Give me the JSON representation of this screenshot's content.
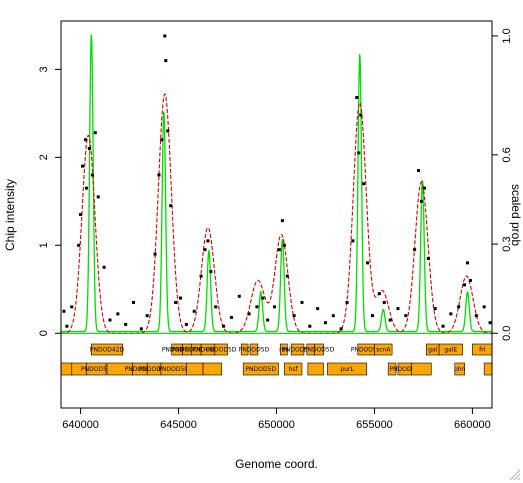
{
  "chart_data": {
    "type": "line",
    "title": "",
    "xlabel": "Genome coord.",
    "ylabel": "Chip intensity",
    "ylabel_right": "scaled prob",
    "xlim": [
      639000,
      661000
    ],
    "ylim": [
      -0.85,
      3.55
    ],
    "ylim_right": [
      -0.0,
      1.0
    ],
    "x_ticks": [
      640000,
      645000,
      650000,
      655000,
      660000
    ],
    "x_tick_labels": [
      "640000",
      "645000",
      "650000",
      "655000",
      "660000"
    ],
    "y_ticks": [
      0,
      1,
      2,
      3
    ],
    "y_tick_labels": [
      "0",
      "1",
      "2",
      "3"
    ],
    "y_right_ticks": [
      0.0,
      0.3,
      0.6,
      1.0
    ],
    "y_right_tick_labels": [
      "0.0",
      "0.3",
      "0.6",
      "1.0"
    ],
    "grid": false,
    "colors": {
      "probability": "#00dd00",
      "fit": "#cc0000",
      "genes": "#ffa500",
      "points": "#000000"
    },
    "series": [
      {
        "kind": "lines",
        "color": "#00dd00",
        "baseline": 0.02,
        "peaks": [
          {
            "center": 640550,
            "height": 3.38,
            "width": 90
          },
          {
            "center": 644250,
            "height": 2.5,
            "width": 90
          },
          {
            "center": 646550,
            "height": 0.92,
            "width": 90
          },
          {
            "center": 649200,
            "height": 0.45,
            "width": 90
          },
          {
            "center": 650300,
            "height": 1.05,
            "width": 90
          },
          {
            "center": 654250,
            "height": 3.15,
            "width": 90
          },
          {
            "center": 655450,
            "height": 0.25,
            "width": 90
          },
          {
            "center": 657450,
            "height": 1.72,
            "width": 90
          },
          {
            "center": 659750,
            "height": 0.45,
            "width": 90
          }
        ]
      },
      {
        "kind": "dashed",
        "color": "#cc0000",
        "peaks": [
          {
            "center": 640400,
            "height": 2.25,
            "width": 330
          },
          {
            "center": 644300,
            "height": 2.72,
            "width": 330
          },
          {
            "center": 646500,
            "height": 1.2,
            "width": 330
          },
          {
            "center": 649050,
            "height": 0.6,
            "width": 360
          },
          {
            "center": 650250,
            "height": 1.12,
            "width": 330
          },
          {
            "center": 654250,
            "height": 2.62,
            "width": 330
          },
          {
            "center": 655400,
            "height": 0.48,
            "width": 330
          },
          {
            "center": 657400,
            "height": 1.72,
            "width": 330
          },
          {
            "center": 659700,
            "height": 0.65,
            "width": 330
          }
        ]
      }
    ],
    "points": [
      [
        639150,
        0.25
      ],
      [
        639300,
        0.08
      ],
      [
        639550,
        0.3
      ],
      [
        639900,
        1.0
      ],
      [
        640000,
        1.35
      ],
      [
        640100,
        1.9
      ],
      [
        640250,
        2.2
      ],
      [
        640300,
        1.65
      ],
      [
        640450,
        2.1
      ],
      [
        640600,
        1.8
      ],
      [
        640750,
        2.28
      ],
      [
        640900,
        1.55
      ],
      [
        641200,
        0.75
      ],
      [
        641500,
        0.15
      ],
      [
        641900,
        0.22
      ],
      [
        642300,
        0.1
      ],
      [
        642700,
        0.35
      ],
      [
        643100,
        0.05
      ],
      [
        643400,
        0.2
      ],
      [
        643800,
        0.9
      ],
      [
        644000,
        1.8
      ],
      [
        644150,
        2.2
      ],
      [
        644300,
        3.38
      ],
      [
        644350,
        3.1
      ],
      [
        644450,
        2.3
      ],
      [
        644600,
        1.45
      ],
      [
        644850,
        0.35
      ],
      [
        645100,
        0.4
      ],
      [
        645400,
        0.1
      ],
      [
        645800,
        0.25
      ],
      [
        646150,
        0.65
      ],
      [
        646350,
        0.95
      ],
      [
        646500,
        1.05
      ],
      [
        646650,
        0.7
      ],
      [
        646900,
        0.3
      ],
      [
        647300,
        0.08
      ],
      [
        647700,
        0.18
      ],
      [
        648100,
        0.42
      ],
      [
        648600,
        0.22
      ],
      [
        649000,
        0.3
      ],
      [
        649300,
        0.4
      ],
      [
        649550,
        0.15
      ],
      [
        649900,
        0.3
      ],
      [
        650150,
        0.95
      ],
      [
        650300,
        1.28
      ],
      [
        650400,
        1.0
      ],
      [
        650550,
        0.65
      ],
      [
        650900,
        0.2
      ],
      [
        651300,
        0.35
      ],
      [
        651700,
        0.08
      ],
      [
        652100,
        0.28
      ],
      [
        652500,
        0.12
      ],
      [
        652900,
        0.2
      ],
      [
        653300,
        0.05
      ],
      [
        653600,
        0.35
      ],
      [
        653900,
        1.05
      ],
      [
        654100,
        2.68
      ],
      [
        654200,
        2.05
      ],
      [
        654300,
        2.48
      ],
      [
        654450,
        1.7
      ],
      [
        654650,
        0.8
      ],
      [
        654900,
        0.2
      ],
      [
        655250,
        0.45
      ],
      [
        655500,
        0.35
      ],
      [
        655800,
        0.15
      ],
      [
        656200,
        0.28
      ],
      [
        656600,
        0.2
      ],
      [
        657050,
        0.95
      ],
      [
        657250,
        1.85
      ],
      [
        657400,
        1.5
      ],
      [
        657550,
        1.65
      ],
      [
        657750,
        0.85
      ],
      [
        658100,
        0.28
      ],
      [
        658500,
        0.08
      ],
      [
        658900,
        0.22
      ],
      [
        659300,
        0.3
      ],
      [
        659600,
        0.55
      ],
      [
        659750,
        0.8
      ],
      [
        659900,
        0.6
      ],
      [
        660200,
        0.2
      ],
      [
        660600,
        0.3
      ],
      [
        660900,
        0.12
      ]
    ],
    "genes_row1": [
      {
        "start": 640550,
        "end": 642150,
        "label": "PNDOD42D"
      },
      {
        "start": 644650,
        "end": 645200,
        "label": "PNDOD5D"
      },
      {
        "start": 645200,
        "end": 645650,
        "label": "PNDOD5D"
      },
      {
        "start": 645650,
        "end": 646150,
        "label": "PNDOD5D"
      },
      {
        "start": 646150,
        "end": 646850,
        "label": "PNDOD5D"
      },
      {
        "start": 646850,
        "end": 647500,
        "label": "PNDOD5D"
      },
      {
        "start": 648200,
        "end": 648550,
        "label": ""
      },
      {
        "start": 648650,
        "end": 649050,
        "label": "PNDOD5D"
      },
      {
        "start": 650200,
        "end": 650550,
        "label": "rbs"
      },
      {
        "start": 650750,
        "end": 651400,
        "label": "PNDOD5D"
      },
      {
        "start": 651550,
        "end": 651950,
        "label": ""
      },
      {
        "start": 651950,
        "end": 652400,
        "label": "PNDOD5D"
      },
      {
        "start": 654150,
        "end": 655000,
        "label": "PNDOD5D"
      },
      {
        "start": 655000,
        "end": 655900,
        "label": "scnA"
      },
      {
        "start": 657650,
        "end": 658300,
        "label": "gal"
      },
      {
        "start": 658300,
        "end": 659500,
        "label": "galE"
      },
      {
        "start": 660000,
        "end": 661000,
        "label": "frl"
      }
    ],
    "genes_row2": [
      {
        "start": 639000,
        "end": 639550,
        "label": ""
      },
      {
        "start": 639550,
        "end": 640300,
        "label": ""
      },
      {
        "start": 640300,
        "end": 641300,
        "label": "PNDOD5D"
      },
      {
        "start": 641350,
        "end": 642650,
        "label": ""
      },
      {
        "start": 642650,
        "end": 643400,
        "label": "PNDOD4D"
      },
      {
        "start": 643400,
        "end": 644100,
        "label": "PNDOD4D"
      },
      {
        "start": 644100,
        "end": 645400,
        "label": "PNDOD5D"
      },
      {
        "start": 645400,
        "end": 646250,
        "label": ""
      },
      {
        "start": 646250,
        "end": 647200,
        "label": ""
      },
      {
        "start": 648300,
        "end": 650100,
        "label": "PNDOD5D"
      },
      {
        "start": 650400,
        "end": 651300,
        "label": "hsf"
      },
      {
        "start": 651600,
        "end": 652400,
        "label": ""
      },
      {
        "start": 652600,
        "end": 654600,
        "label": "purL"
      },
      {
        "start": 655700,
        "end": 656100,
        "label": ""
      },
      {
        "start": 656200,
        "end": 656900,
        "label": "PNDOD5D"
      },
      {
        "start": 656900,
        "end": 657900,
        "label": ""
      },
      {
        "start": 659100,
        "end": 659600,
        "label": "phn"
      },
      {
        "start": 660600,
        "end": 661000,
        "label": ""
      }
    ]
  }
}
